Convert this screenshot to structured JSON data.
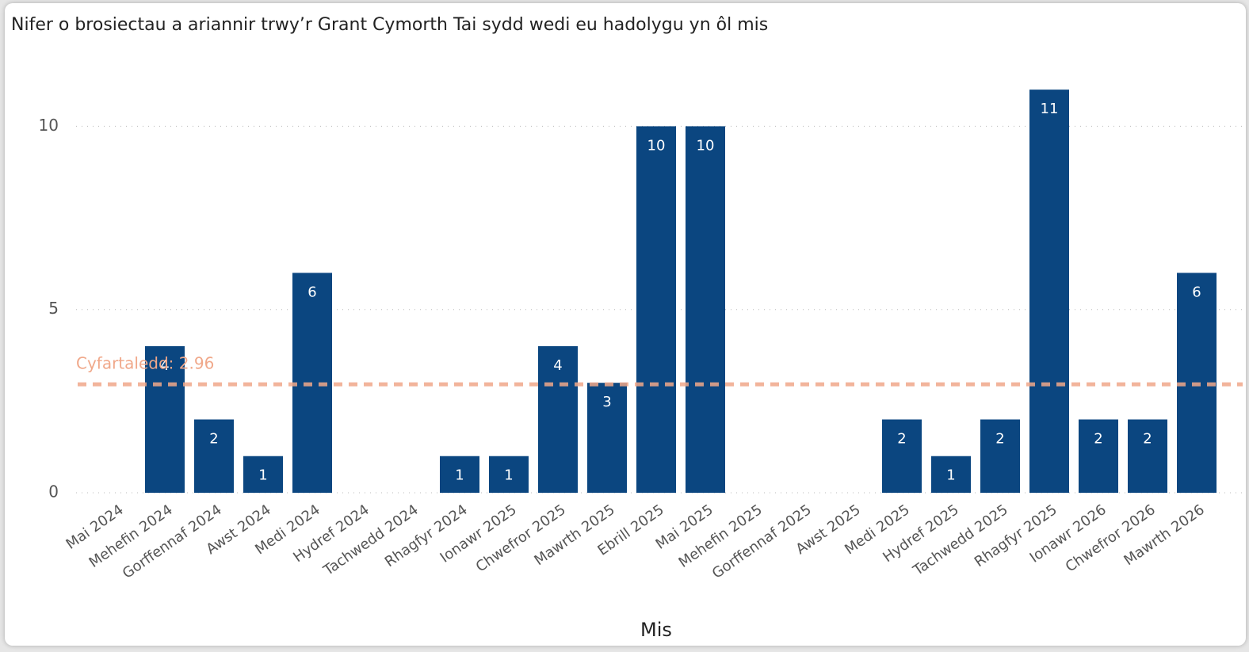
{
  "chart_data": {
    "type": "bar",
    "title": "Nifer o brosiectau a ariannir trwy’r Grant Cymorth Tai sydd wedi eu hadolygu yn ôl mis",
    "x_label": "Mis",
    "categories": [
      "Mai 2024",
      "Mehefin 2024",
      "Gorffennaf 2024",
      "Awst 2024",
      "Medi 2024",
      "Hydref 2024",
      "Tachwedd 2024",
      "Rhagfyr 2024",
      "Ionawr 2025",
      "Chwefror 2025",
      "Mawrth 2025",
      "Ebrill 2025",
      "Mai 2025",
      "Mehefin 2025",
      "Gorffennaf 2025",
      "Awst 2025",
      "Medi 2025",
      "Hydref 2025",
      "Tachwedd 2025",
      "Rhagfyr 2025",
      "Ionawr 2026",
      "Chwefror 2026",
      "Mawrth 2026"
    ],
    "values": [
      null,
      4,
      2,
      1,
      6,
      null,
      null,
      1,
      1,
      4,
      3,
      10,
      10,
      null,
      null,
      null,
      2,
      1,
      2,
      11,
      2,
      2,
      6
    ],
    "color": "#0b4680",
    "ylim": [
      0,
      11.5
    ],
    "yticks": [
      0,
      5,
      10
    ],
    "grid": true,
    "average": {
      "value": 2.96,
      "label": "Cyfartaledd: 2.96",
      "color": "#f0a88a"
    }
  }
}
